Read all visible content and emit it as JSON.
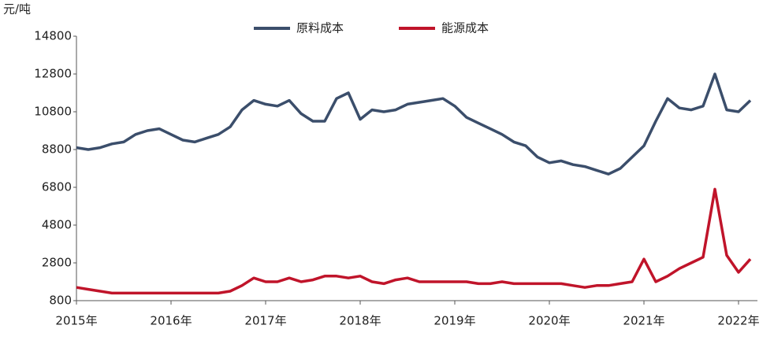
{
  "chart_data": {
    "type": "line",
    "y_unit": "元/吨",
    "xlim": [
      2015,
      2022.2
    ],
    "xticks": [
      {
        "value": 2015,
        "label": "2015年"
      },
      {
        "value": 2016,
        "label": "2016年"
      },
      {
        "value": 2017,
        "label": "2017年"
      },
      {
        "value": 2018,
        "label": "2018年"
      },
      {
        "value": 2019,
        "label": "2019年"
      },
      {
        "value": 2020,
        "label": "2020年"
      },
      {
        "value": 2021,
        "label": "2021年"
      },
      {
        "value": 2022,
        "label": "2022年"
      }
    ],
    "ylim": [
      800,
      14800
    ],
    "yticks": [
      800,
      2800,
      4800,
      6800,
      8800,
      10800,
      12800,
      14800
    ],
    "grid": false,
    "legend": "top",
    "x": [
      2015,
      2015.125,
      2015.25,
      2015.375,
      2015.5,
      2015.625,
      2015.75,
      2015.875,
      2016,
      2016.125,
      2016.25,
      2016.375,
      2016.5,
      2016.625,
      2016.75,
      2016.875,
      2017,
      2017.125,
      2017.25,
      2017.375,
      2017.5,
      2017.625,
      2017.75,
      2017.875,
      2018,
      2018.125,
      2018.25,
      2018.375,
      2018.5,
      2018.625,
      2018.75,
      2018.875,
      2019,
      2019.125,
      2019.25,
      2019.375,
      2019.5,
      2019.625,
      2019.75,
      2019.875,
      2020,
      2020.125,
      2020.25,
      2020.375,
      2020.5,
      2020.625,
      2020.75,
      2020.875,
      2021,
      2021.125,
      2021.25,
      2021.375,
      2021.5,
      2021.625,
      2021.75,
      2021.875,
      2022,
      2022.125
    ],
    "series": [
      {
        "name": "原料成本",
        "color": "#3b4e6b",
        "values": [
          8900,
          8800,
          8900,
          9100,
          9200,
          9600,
          9800,
          9900,
          9600,
          9300,
          9200,
          9400,
          9600,
          10000,
          10900,
          11400,
          11200,
          11100,
          11400,
          10700,
          10300,
          10300,
          11500,
          11800,
          10400,
          10900,
          10800,
          10900,
          11200,
          11300,
          11400,
          11500,
          11100,
          10500,
          10200,
          9900,
          9600,
          9200,
          9000,
          8400,
          8100,
          8200,
          8000,
          7900,
          7700,
          7500,
          7800,
          8400,
          9000,
          10300,
          11500,
          11000,
          10900,
          11100,
          12800,
          10900,
          10800,
          11400
        ]
      },
      {
        "name": "能源成本",
        "color": "#c0142a",
        "values": [
          1500,
          1400,
          1300,
          1200,
          1200,
          1200,
          1200,
          1200,
          1200,
          1200,
          1200,
          1200,
          1200,
          1300,
          1600,
          2000,
          1800,
          1800,
          2000,
          1800,
          1900,
          2100,
          2100,
          2000,
          2100,
          1800,
          1700,
          1900,
          2000,
          1800,
          1800,
          1800,
          1800,
          1800,
          1700,
          1700,
          1800,
          1700,
          1700,
          1700,
          1700,
          1700,
          1600,
          1500,
          1600,
          1600,
          1700,
          1800,
          3000,
          1800,
          2100,
          2500,
          2800,
          3100,
          6700,
          3200,
          2300,
          3000
        ]
      }
    ]
  }
}
